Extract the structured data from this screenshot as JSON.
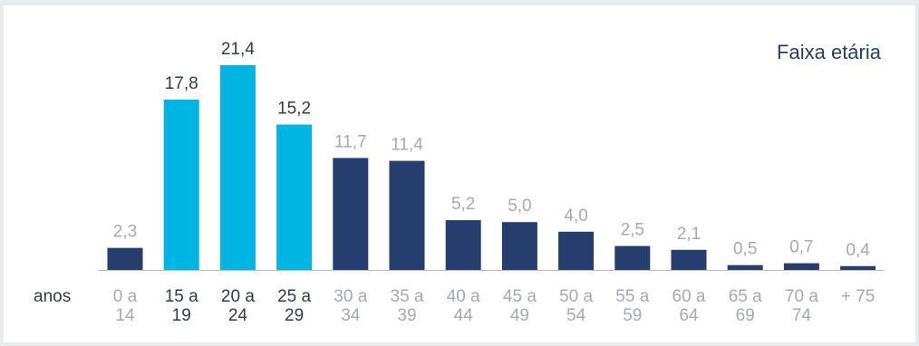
{
  "chart_data": {
    "type": "bar",
    "title": "Faixa etária",
    "xlabel": "anos",
    "ylabel": "",
    "ylim": [
      0,
      21.4
    ],
    "grid": false,
    "categories": [
      [
        "0 a",
        "14"
      ],
      [
        "15 a",
        "19"
      ],
      [
        "20 a",
        "24"
      ],
      [
        "25 a",
        "29"
      ],
      [
        "30 a",
        "34"
      ],
      [
        "35 a",
        "39"
      ],
      [
        "40 a",
        "44"
      ],
      [
        "45 a",
        "49"
      ],
      [
        "50 a",
        "54"
      ],
      [
        "55 a",
        "59"
      ],
      [
        "60 a",
        "64"
      ],
      [
        "65 a",
        "69"
      ],
      [
        "70 a",
        "74"
      ],
      [
        "+ 75"
      ]
    ],
    "values": [
      2.3,
      17.8,
      21.4,
      15.2,
      11.7,
      11.4,
      5.2,
      5.0,
      4.0,
      2.5,
      2.1,
      0.5,
      0.7,
      0.4
    ],
    "value_labels": [
      "2,3",
      "17,8",
      "21,4",
      "15,2",
      "11,7",
      "11,4",
      "5,2",
      "5,0",
      "4,0",
      "2,5",
      "2,1",
      "0,5",
      "0,7",
      "0,4"
    ],
    "highlighted": [
      false,
      true,
      true,
      true,
      false,
      false,
      false,
      false,
      false,
      false,
      false,
      false,
      false,
      false
    ]
  },
  "colors": {
    "highlight_bar": "#00b5e2",
    "default_bar": "#263e6d",
    "highlight_text": "#333a48",
    "default_text": "#a6a9af",
    "title": "#263e6d",
    "axis": "#b8bcc2"
  }
}
